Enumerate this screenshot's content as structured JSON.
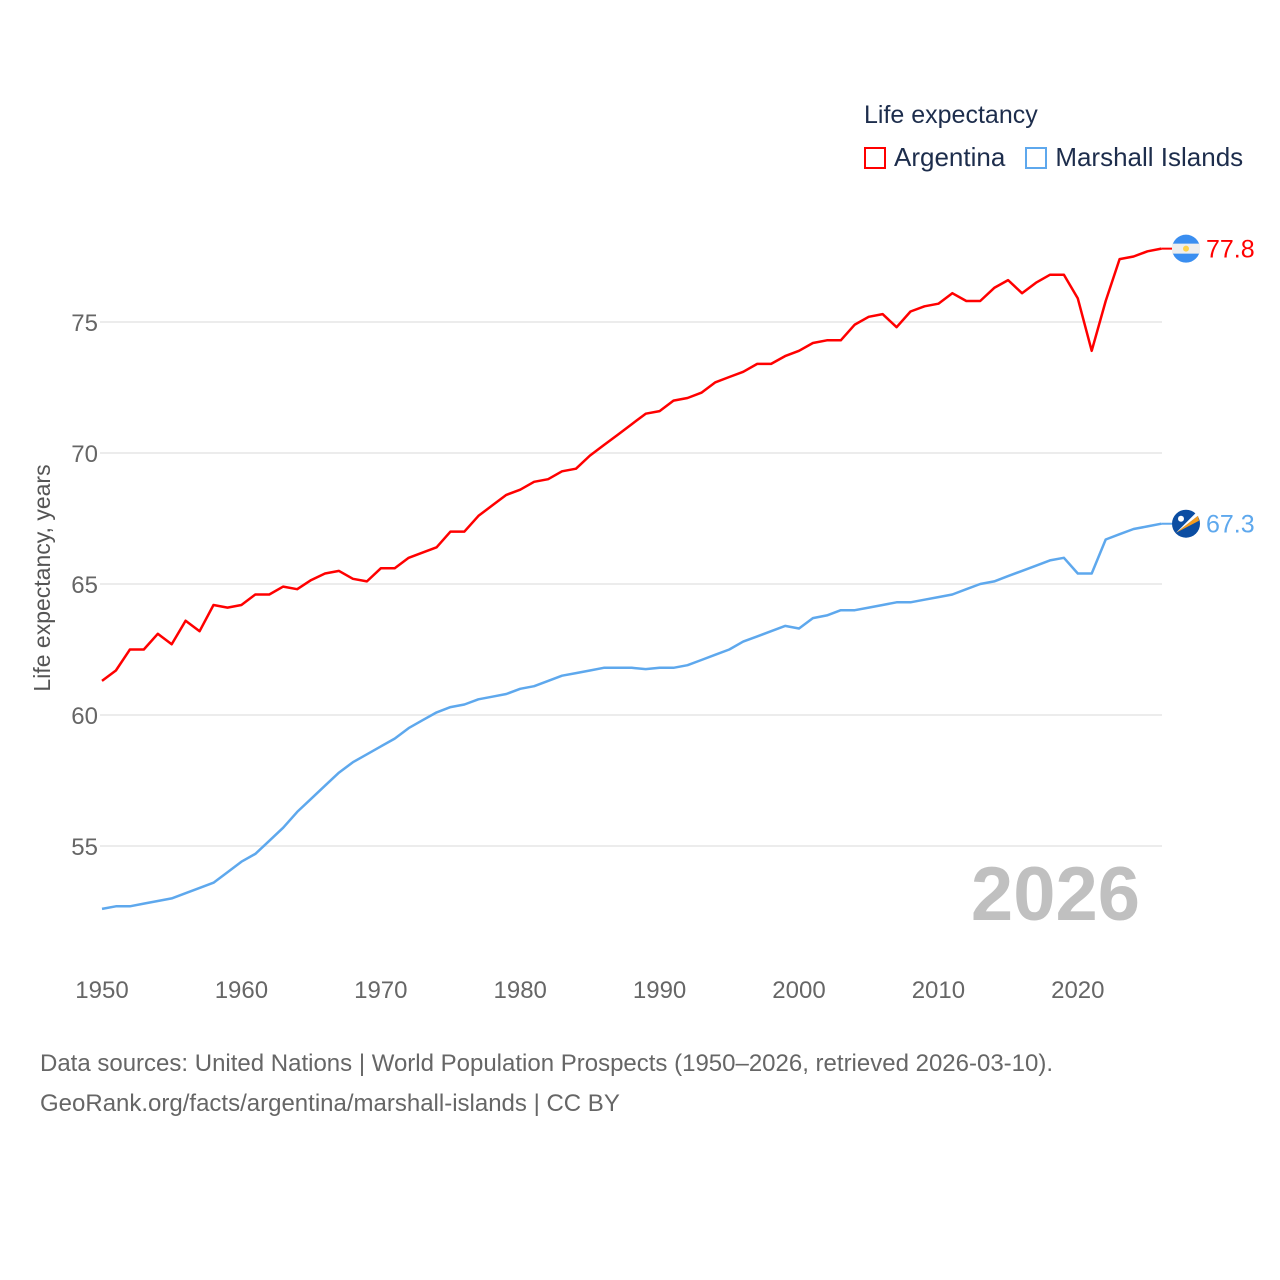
{
  "chart_data": {
    "type": "line",
    "title": "Life expectancy",
    "ylabel": "Life expectancy, years",
    "xlabel": "",
    "ylim": [
      51.6,
      79.0
    ],
    "xlim": [
      1950,
      2026
    ],
    "yticks": [
      55,
      60,
      65,
      70,
      75
    ],
    "xticks": [
      1950,
      1960,
      1970,
      1980,
      1990,
      2000,
      2010,
      2020
    ],
    "grid": true,
    "legend_placement": "top-right",
    "watermark_year": "2026",
    "x_start": 1950,
    "series": [
      {
        "name": "Argentina",
        "color": "#ff0000",
        "end_label": "77.8",
        "flag": "argentina-flag",
        "values": [
          61.3,
          61.7,
          62.5,
          62.5,
          63.1,
          62.7,
          63.6,
          63.2,
          64.2,
          64.1,
          64.2,
          64.6,
          64.6,
          64.9,
          64.8,
          65.15,
          65.4,
          65.5,
          65.2,
          65.1,
          65.6,
          65.6,
          66.0,
          66.2,
          66.4,
          67.0,
          67.0,
          67.6,
          68.0,
          68.4,
          68.6,
          68.9,
          69.0,
          69.3,
          69.4,
          69.9,
          70.3,
          70.7,
          71.1,
          71.5,
          71.6,
          72.0,
          72.1,
          72.3,
          72.7,
          72.9,
          73.1,
          73.4,
          73.4,
          73.7,
          73.9,
          74.2,
          74.3,
          74.3,
          74.9,
          75.2,
          75.3,
          74.8,
          75.4,
          75.6,
          75.7,
          76.1,
          75.8,
          75.8,
          76.3,
          76.6,
          76.1,
          76.5,
          76.8,
          76.8,
          75.9,
          73.9,
          75.8,
          77.4,
          77.5,
          77.7,
          77.8
        ]
      },
      {
        "name": "Marshall Islands",
        "color": "#5ea8ed",
        "end_label": "67.3",
        "flag": "marshall-islands-flag",
        "values": [
          52.6,
          52.7,
          52.7,
          52.8,
          52.9,
          53.0,
          53.2,
          53.4,
          53.6,
          54.0,
          54.4,
          54.7,
          55.2,
          55.7,
          56.3,
          56.8,
          57.3,
          57.8,
          58.2,
          58.5,
          58.8,
          59.1,
          59.5,
          59.8,
          60.1,
          60.3,
          60.4,
          60.6,
          60.7,
          60.8,
          61.0,
          61.1,
          61.3,
          61.5,
          61.6,
          61.7,
          61.8,
          61.8,
          61.8,
          61.75,
          61.8,
          61.8,
          61.9,
          62.1,
          62.3,
          62.5,
          62.8,
          63.0,
          63.2,
          63.4,
          63.3,
          63.7,
          63.8,
          64.0,
          64.0,
          64.1,
          64.2,
          64.3,
          64.3,
          64.4,
          64.5,
          64.6,
          64.8,
          65.0,
          65.1,
          65.3,
          65.5,
          65.7,
          65.9,
          66.0,
          65.4,
          65.4,
          66.7,
          66.9,
          67.1,
          67.2,
          67.3
        ]
      }
    ]
  },
  "footer": {
    "line1": "Data sources: United Nations | World Population Prospects (1950–2026, retrieved 2026-03-10).",
    "line2": "GeoRank.org/facts/argentina/marshall-islands | CC BY"
  }
}
